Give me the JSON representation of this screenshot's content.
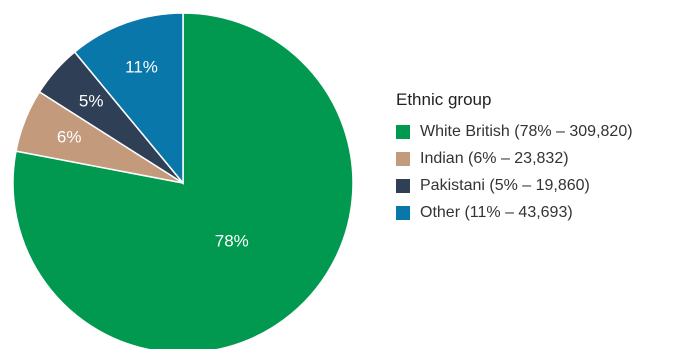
{
  "chart_data": {
    "type": "pie",
    "legend_title": "Ethnic group",
    "legend_position": "right",
    "slices": [
      {
        "label": "White British",
        "percent": 78,
        "value": 309820,
        "percent_label": "78%",
        "legend_label": "White British (78% – 309,820)",
        "color": "#00994f"
      },
      {
        "label": "Indian",
        "percent": 6,
        "value": 23832,
        "percent_label": "6%",
        "legend_label": "Indian (6% – 23,832)",
        "color": "#c49a7c"
      },
      {
        "label": "Pakistani",
        "percent": 5,
        "value": 19860,
        "percent_label": "5%",
        "legend_label": "Pakistani (5% – 19,860)",
        "color": "#2e3f56"
      },
      {
        "label": "Other",
        "percent": 11,
        "value": 43693,
        "percent_label": "11%",
        "legend_label": "Other (11% – 43,693)",
        "color": "#0a77aa"
      }
    ]
  }
}
